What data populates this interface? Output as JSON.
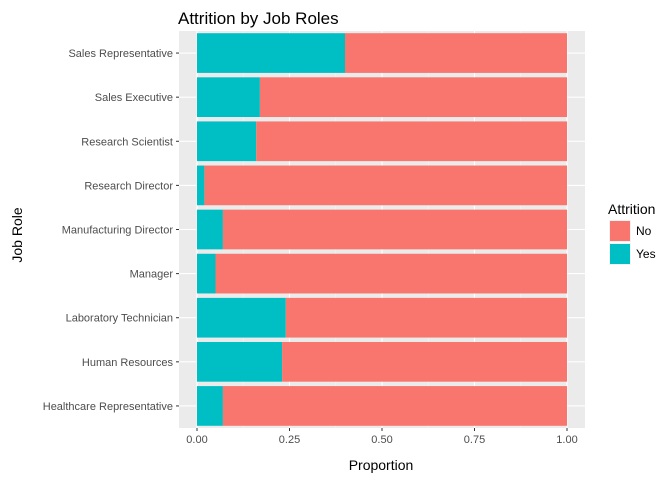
{
  "chart_data": {
    "type": "bar",
    "orientation": "horizontal",
    "stacked": true,
    "title": "Attrition by Job Roles",
    "xlabel": "Proportion",
    "ylabel": "Job Role",
    "xlim": [
      0,
      1
    ],
    "x_ticks": [
      "0.00",
      "0.25",
      "0.50",
      "0.75",
      "1.00"
    ],
    "categories": [
      "Healthcare Representative",
      "Human Resources",
      "Laboratory Technician",
      "Manager",
      "Manufacturing Director",
      "Research Director",
      "Research Scientist",
      "Sales Executive",
      "Sales Representative"
    ],
    "series": [
      {
        "name": "Yes",
        "color": "#00BFC4",
        "values": [
          0.07,
          0.23,
          0.24,
          0.05,
          0.07,
          0.02,
          0.16,
          0.17,
          0.4
        ]
      },
      {
        "name": "No",
        "color": "#F8766D",
        "values": [
          0.93,
          0.77,
          0.76,
          0.95,
          0.93,
          0.98,
          0.84,
          0.83,
          0.6
        ]
      }
    ],
    "legend": {
      "title": "Attrition",
      "position": "right",
      "entries": [
        {
          "label": "No",
          "color": "#F8766D"
        },
        {
          "label": "Yes",
          "color": "#00BFC4"
        }
      ]
    },
    "grid": true,
    "panel_background": "#EBEBEB"
  }
}
